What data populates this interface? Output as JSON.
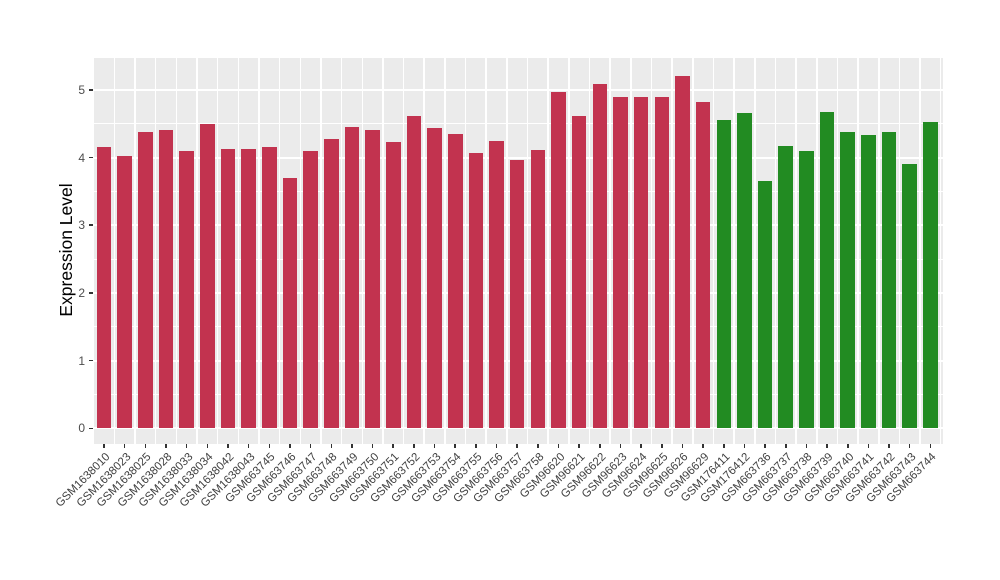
{
  "chart_data": {
    "type": "bar",
    "title": "",
    "xlabel": "",
    "ylabel": "Expression Level",
    "ylim": [
      0,
      5.47
    ],
    "y_ticks": [
      "0",
      "1",
      "2",
      "3",
      "4",
      "5"
    ],
    "grid": true,
    "legend": false,
    "panel_background": "#EBEBEB",
    "gridline_color": "#FFFFFF",
    "tick_text_color": "#4D4D4D",
    "categories": [
      "GSM1638010",
      "GSM1638023",
      "GSM1638025",
      "GSM1638028",
      "GSM1638033",
      "GSM1638034",
      "GSM1638042",
      "GSM1638043",
      "GSM663745",
      "GSM663746",
      "GSM663747",
      "GSM663748",
      "GSM663749",
      "GSM663750",
      "GSM663751",
      "GSM663752",
      "GSM663753",
      "GSM663754",
      "GSM663755",
      "GSM663756",
      "GSM663757",
      "GSM663758",
      "GSM96620",
      "GSM96621",
      "GSM96622",
      "GSM96623",
      "GSM96624",
      "GSM96625",
      "GSM96626",
      "GSM96629",
      "GSM176411",
      "GSM176412",
      "GSM663736",
      "GSM663737",
      "GSM663738",
      "GSM663739",
      "GSM663740",
      "GSM663741",
      "GSM663742",
      "GSM663743",
      "GSM663744"
    ],
    "values": [
      4.15,
      4.02,
      4.37,
      4.4,
      4.1,
      4.5,
      4.12,
      4.12,
      4.16,
      3.7,
      4.1,
      4.28,
      4.45,
      4.4,
      4.23,
      4.62,
      4.43,
      4.35,
      4.07,
      4.25,
      3.96,
      4.11,
      4.97,
      4.62,
      5.08,
      4.9,
      4.9,
      4.9,
      5.21,
      4.82,
      4.56,
      4.65,
      3.65,
      4.17,
      4.1,
      4.67,
      4.37,
      4.33,
      4.37,
      3.9,
      4.52
    ],
    "groups": [
      "red",
      "red",
      "red",
      "red",
      "red",
      "red",
      "red",
      "red",
      "red",
      "red",
      "red",
      "red",
      "red",
      "red",
      "red",
      "red",
      "red",
      "red",
      "red",
      "red",
      "red",
      "red",
      "red",
      "red",
      "red",
      "red",
      "red",
      "red",
      "red",
      "red",
      "green",
      "green",
      "green",
      "green",
      "green",
      "green",
      "green",
      "green",
      "green",
      "green",
      "green"
    ],
    "group_colors": {
      "red": "#C2334F",
      "green": "#228B22"
    }
  }
}
